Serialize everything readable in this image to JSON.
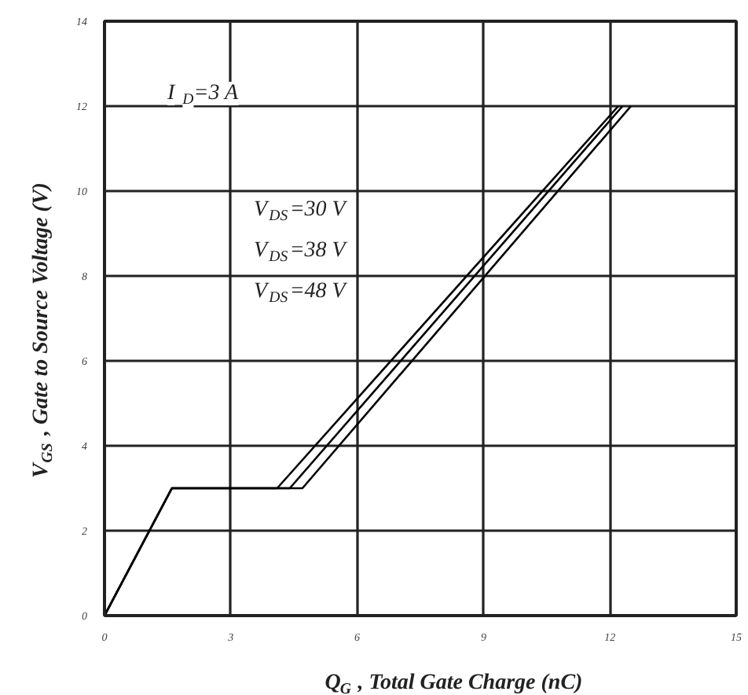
{
  "chart_data": {
    "type": "line",
    "xlabel": "Q$_{G}$ , Total Gate Charge (nC)",
    "ylabel": "V$_{GS}$ , Gate to Source Voltage (V)",
    "series": [
      {
        "color": "#000000",
        "x": [
          0,
          1.6,
          4.1,
          12.2
        ],
        "values": [
          0,
          3,
          3,
          12
        ]
      },
      {
        "color": "#000000",
        "x": [
          0,
          1.6,
          4.4,
          12.3
        ],
        "values": [
          0,
          3,
          3,
          12
        ]
      },
      {
        "color": "#000000",
        "x": [
          0,
          1.6,
          4.7,
          12.5
        ],
        "values": [
          0,
          3,
          3,
          12
        ]
      }
    ],
    "annotations": [
      "I$_{D}$=3 A",
      "V$_{DS}$=30 V",
      "V$_{DS}$=38 V",
      "V$_{DS}$=48 V"
    ],
    "xlim": [
      0,
      15
    ],
    "ylim": [
      0,
      14
    ],
    "xticks": [
      0,
      3,
      6,
      9,
      12,
      15
    ],
    "yticks": [
      0,
      2,
      4,
      6,
      8,
      10,
      12,
      14
    ],
    "grid": true,
    "marker": "none",
    "line_style": "solid"
  }
}
